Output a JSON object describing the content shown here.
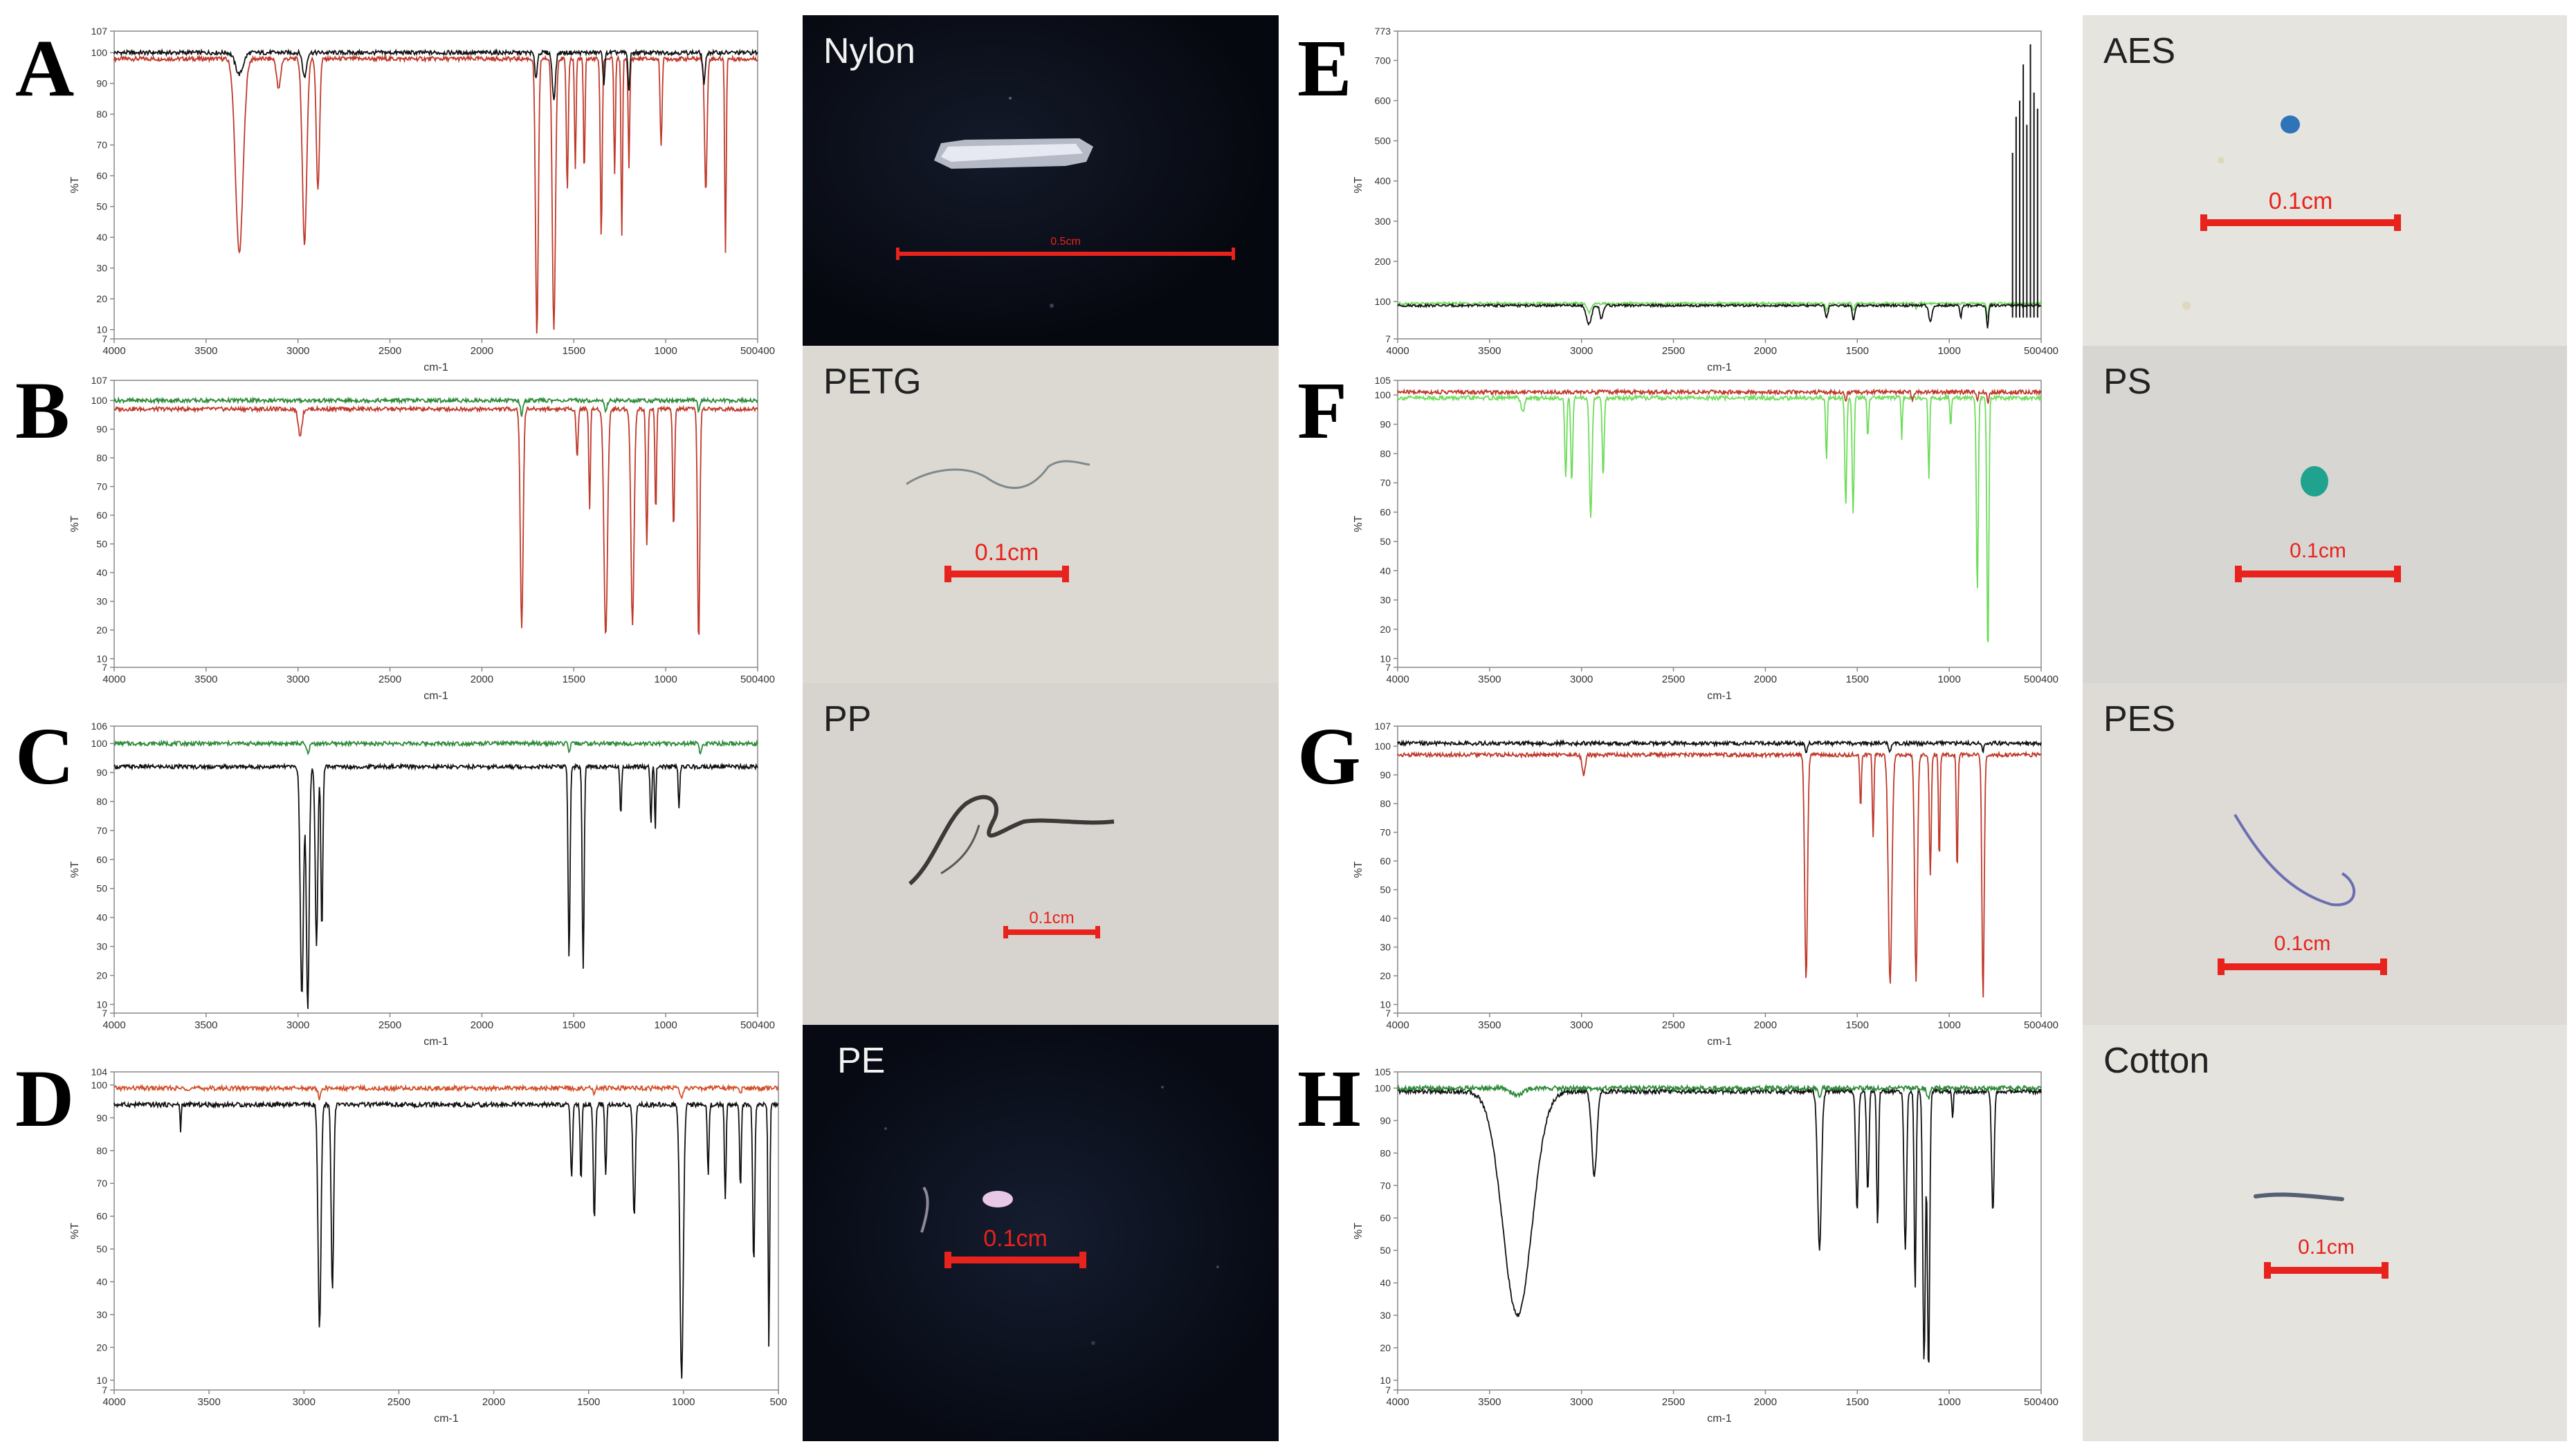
{
  "axes_common": {
    "xlabel": "cm-1",
    "ylabel": "%T"
  },
  "colors": {
    "red": "#c0392b",
    "black": "#111111",
    "green": "#2e8b3a",
    "lightgreen": "#6fdc5a",
    "orange": "#d2522a",
    "scalebar": "#e8221c"
  },
  "chart_data": [
    {
      "panel": "A",
      "type": "line",
      "xlabel": "cm-1",
      "ylabel": "%T",
      "xlim": [
        4000,
        400
      ],
      "ylim": [
        7,
        107
      ],
      "xticks": [
        "4000",
        "3500",
        "3000",
        "2500",
        "2000",
        "1500",
        "1000",
        "500400"
      ],
      "yticks": [
        "107",
        "100",
        "90",
        "80",
        "70",
        "60",
        "50",
        "40",
        "30",
        "20",
        "10",
        "7"
      ],
      "series": [
        {
          "color": "red",
          "baseline": 98,
          "peaks": [
            [
              3300,
              35,
              60
            ],
            [
              3080,
              88,
              30
            ],
            [
              2935,
              38,
              35
            ],
            [
              2860,
              55,
              25
            ],
            [
              1635,
              8,
              22
            ],
            [
              1540,
              10,
              25
            ],
            [
              1465,
              55,
              15
            ],
            [
              1420,
              62,
              12
            ],
            [
              1370,
              60,
              12
            ],
            [
              1275,
              40,
              15
            ],
            [
              1200,
              60,
              12
            ],
            [
              1160,
              40,
              12
            ],
            [
              1120,
              62,
              12
            ],
            [
              940,
              70,
              15
            ],
            [
              690,
              55,
              20
            ],
            [
              580,
              35,
              12
            ]
          ]
        },
        {
          "color": "black",
          "baseline": 100,
          "peaks": [
            [
              3300,
              93,
              60
            ],
            [
              2935,
              92,
              30
            ],
            [
              1640,
              92,
              20
            ],
            [
              1540,
              85,
              25
            ],
            [
              1260,
              90,
              15
            ],
            [
              1120,
              88,
              15
            ],
            [
              700,
              90,
              20
            ]
          ]
        }
      ]
    },
    {
      "panel": "B",
      "type": "line",
      "xlabel": "cm-1",
      "ylabel": "%T",
      "xlim": [
        4000,
        400
      ],
      "ylim": [
        7,
        107
      ],
      "xticks": [
        "4000",
        "3500",
        "3000",
        "2500",
        "2000",
        "1500",
        "1000",
        "500400"
      ],
      "yticks": [
        "107",
        "100",
        "90",
        "80",
        "70",
        "60",
        "50",
        "40",
        "30",
        "20",
        "10",
        "7"
      ],
      "series": [
        {
          "color": "red",
          "baseline": 97,
          "peaks": [
            [
              2960,
              88,
              30
            ],
            [
              1720,
              20,
              22
            ],
            [
              1410,
              80,
              15
            ],
            [
              1340,
              62,
              12
            ],
            [
              1250,
              18,
              28
            ],
            [
              1100,
              22,
              25
            ],
            [
              1020,
              50,
              15
            ],
            [
              970,
              60,
              12
            ],
            [
              870,
              55,
              15
            ],
            [
              730,
              15,
              18
            ]
          ]
        },
        {
          "color": "green",
          "baseline": 100,
          "peaks": [
            [
              1720,
              95,
              20
            ],
            [
              1250,
              96,
              20
            ],
            [
              730,
              96,
              15
            ]
          ]
        }
      ]
    },
    {
      "panel": "C",
      "type": "line",
      "xlabel": "cm-1",
      "ylabel": "%T",
      "xlim": [
        4000,
        400
      ],
      "ylim": [
        7,
        106
      ],
      "xticks": [
        "4000",
        "3500",
        "3000",
        "2500",
        "2000",
        "1500",
        "1000",
        "500400"
      ],
      "yticks": [
        "106",
        "100",
        "90",
        "80",
        "70",
        "60",
        "50",
        "40",
        "30",
        "20",
        "10",
        "7"
      ],
      "series": [
        {
          "color": "black",
          "baseline": 92,
          "peaks": [
            [
              2950,
              12,
              25
            ],
            [
              2917,
              8,
              22
            ],
            [
              2868,
              30,
              20
            ],
            [
              2838,
              35,
              15
            ],
            [
              1455,
              25,
              15
            ],
            [
              1376,
              22,
              15
            ],
            [
              1166,
              75,
              12
            ],
            [
              997,
              72,
              12
            ],
            [
              973,
              70,
              10
            ],
            [
              840,
              78,
              12
            ]
          ]
        },
        {
          "color": "green",
          "baseline": 100,
          "peaks": [
            [
              2917,
              97,
              25
            ],
            [
              1455,
              97,
              15
            ],
            [
              720,
              96,
              15
            ]
          ]
        }
      ]
    },
    {
      "panel": "D",
      "type": "line",
      "xlabel": "cm-1",
      "ylabel": "%T",
      "xlim": [
        4000,
        500
      ],
      "ylim": [
        7,
        104
      ],
      "xticks": [
        "4000",
        "3500",
        "3000",
        "2500",
        "2000",
        "1500",
        "1000",
        "500"
      ],
      "yticks": [
        "104",
        "100",
        "90",
        "80",
        "70",
        "60",
        "50",
        "40",
        "30",
        "20",
        "10",
        "7"
      ],
      "series": [
        {
          "color": "black",
          "baseline": 94,
          "peaks": [
            [
              3650,
              86,
              8
            ],
            [
              2918,
              25,
              22
            ],
            [
              2850,
              37,
              18
            ],
            [
              1590,
              72,
              15
            ],
            [
              1540,
              70,
              12
            ],
            [
              1470,
              58,
              15
            ],
            [
              1410,
              72,
              12
            ],
            [
              1260,
              60,
              18
            ],
            [
              1010,
              10,
              25
            ],
            [
              870,
              72,
              12
            ],
            [
              780,
              65,
              12
            ],
            [
              700,
              68,
              12
            ],
            [
              630,
              45,
              15
            ],
            [
              550,
              20,
              12
            ]
          ]
        },
        {
          "color": "orange",
          "baseline": 99,
          "peaks": [
            [
              2918,
              96,
              20
            ],
            [
              1470,
              97,
              12
            ],
            [
              1010,
              96,
              20
            ],
            [
              700,
              97,
              12
            ]
          ]
        }
      ]
    },
    {
      "panel": "E",
      "type": "line",
      "xlabel": "cm-1",
      "ylabel": "%T",
      "xlim": [
        4000,
        400
      ],
      "ylim": [
        7,
        773
      ],
      "xticks": [
        "4000",
        "3500",
        "3000",
        "2500",
        "2000",
        "1500",
        "1000",
        "500400"
      ],
      "yticks": [
        "773",
        "700",
        "600",
        "500",
        "400",
        "300",
        "200",
        "100",
        "7"
      ],
      "series": [
        {
          "color": "lightgreen",
          "baseline": 95,
          "peaks": [
            [
              2930,
              72,
              30
            ],
            [
              1600,
              80,
              20
            ],
            [
              1450,
              75,
              15
            ],
            [
              1100,
              82,
              15
            ],
            [
              700,
              60,
              15
            ]
          ]
        },
        {
          "color": "black",
          "baseline": 90,
          "peaks": [
            [
              2930,
              45,
              40
            ],
            [
              2860,
              55,
              25
            ],
            [
              1600,
              60,
              20
            ],
            [
              1450,
              55,
              20
            ],
            [
              1020,
              50,
              25
            ],
            [
              850,
              60,
              15
            ],
            [
              700,
              35,
              15
            ]
          ]
        }
      ],
      "spikes": [
        [
          560,
          470
        ],
        [
          540,
          560
        ],
        [
          520,
          600
        ],
        [
          500,
          690
        ],
        [
          480,
          540
        ],
        [
          460,
          740
        ],
        [
          440,
          620
        ],
        [
          420,
          580
        ]
      ]
    },
    {
      "panel": "F",
      "type": "line",
      "xlabel": "cm-1",
      "ylabel": "%T",
      "xlim": [
        4000,
        400
      ],
      "ylim": [
        7,
        105
      ],
      "xticks": [
        "4000",
        "3500",
        "3000",
        "2500",
        "2000",
        "1500",
        "1000",
        "500400"
      ],
      "yticks": [
        "105",
        "100",
        "90",
        "80",
        "70",
        "60",
        "50",
        "40",
        "30",
        "20",
        "10",
        "7"
      ],
      "series": [
        {
          "color": "lightgreen",
          "baseline": 99,
          "peaks": [
            [
              3300,
              94,
              25
            ],
            [
              3060,
              72,
              15
            ],
            [
              3026,
              70,
              15
            ],
            [
              2920,
              58,
              20
            ],
            [
              2850,
              72,
              15
            ],
            [
              1601,
              78,
              12
            ],
            [
              1493,
              62,
              15
            ],
            [
              1452,
              60,
              15
            ],
            [
              1370,
              85,
              12
            ],
            [
              1180,
              85,
              10
            ],
            [
              1028,
              72,
              12
            ],
            [
              906,
              88,
              10
            ],
            [
              757,
              33,
              15
            ],
            [
              698,
              10,
              15
            ]
          ]
        },
        {
          "color": "red",
          "baseline": 101,
          "peaks": [
            [
              1493,
              98,
              15
            ],
            [
              1120,
              98,
              15
            ],
            [
              757,
              98,
              12
            ],
            [
              698,
              97,
              12
            ]
          ]
        }
      ]
    },
    {
      "panel": "G",
      "type": "line",
      "xlabel": "cm-1",
      "ylabel": "%T",
      "xlim": [
        4000,
        400
      ],
      "ylim": [
        7,
        107
      ],
      "xticks": [
        "4000",
        "3500",
        "3000",
        "2500",
        "2000",
        "1500",
        "1000",
        "500400"
      ],
      "yticks": [
        "107",
        "100",
        "90",
        "80",
        "70",
        "60",
        "50",
        "40",
        "30",
        "20",
        "10",
        "7"
      ],
      "series": [
        {
          "color": "red",
          "baseline": 97,
          "peaks": [
            [
              2960,
              90,
              25
            ],
            [
              1715,
              18,
              22
            ],
            [
              1410,
              78,
              12
            ],
            [
              1340,
              68,
              12
            ],
            [
              1245,
              17,
              28
            ],
            [
              1100,
              18,
              22
            ],
            [
              1020,
              55,
              15
            ],
            [
              970,
              60,
              12
            ],
            [
              870,
              55,
              12
            ],
            [
              725,
              12,
              18
            ]
          ]
        },
        {
          "color": "black",
          "baseline": 101,
          "peaks": [
            [
              1715,
              98,
              20
            ],
            [
              1245,
              98,
              20
            ],
            [
              725,
              98,
              12
            ]
          ]
        }
      ]
    },
    {
      "panel": "H",
      "type": "line",
      "xlabel": "cm-1",
      "ylabel": "%T",
      "xlim": [
        4000,
        400
      ],
      "ylim": [
        7,
        105
      ],
      "xticks": [
        "4000",
        "3500",
        "3000",
        "2500",
        "2000",
        "1500",
        "1000",
        "500400"
      ],
      "yticks": [
        "105",
        "100",
        "90",
        "80",
        "70",
        "60",
        "50",
        "40",
        "30",
        "20",
        "10",
        "7"
      ],
      "series": [
        {
          "color": "black",
          "baseline": 99,
          "peaks": [
            [
              3330,
              30,
              230
            ],
            [
              2900,
              73,
              40
            ],
            [
              1640,
              50,
              30
            ],
            [
              1430,
              62,
              20
            ],
            [
              1370,
              68,
              18
            ],
            [
              1315,
              58,
              15
            ],
            [
              1160,
              50,
              20
            ],
            [
              1105,
              38,
              15
            ],
            [
              1055,
              15,
              20
            ],
            [
              1030,
              12,
              18
            ],
            [
              895,
              90,
              10
            ],
            [
              670,
              62,
              20
            ]
          ]
        },
        {
          "color": "green",
          "baseline": 100,
          "peaks": [
            [
              3330,
              98,
              100
            ],
            [
              1640,
              97,
              20
            ],
            [
              1030,
              97,
              25
            ]
          ]
        }
      ]
    }
  ],
  "photos": [
    {
      "id": "nylon",
      "title": "Nylon",
      "scale": "0.5cm"
    },
    {
      "id": "petg",
      "title": "PETG",
      "scale": "0.1cm"
    },
    {
      "id": "pp",
      "title": "PP",
      "scale": "0.1cm"
    },
    {
      "id": "pe",
      "title": "PE",
      "scale": "0.1cm"
    },
    {
      "id": "aes",
      "title": "AES",
      "scale": "0.1cm"
    },
    {
      "id": "ps",
      "title": "PS",
      "scale": "0.1cm"
    },
    {
      "id": "pes",
      "title": "PES",
      "scale": "0.1cm"
    },
    {
      "id": "cotton",
      "title": "Cotton",
      "scale": "0.1cm"
    }
  ]
}
